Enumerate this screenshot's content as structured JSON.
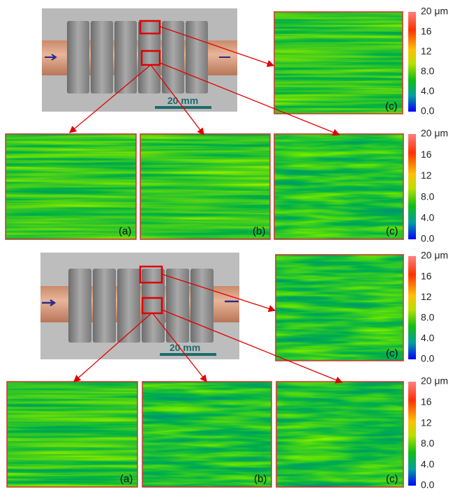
{
  "panels": [
    {
      "photo": {
        "scale_label": "20 mm"
      },
      "maps": [
        {
          "label": "(c)"
        },
        {
          "label": "(a)"
        },
        {
          "label": "(b)"
        },
        {
          "label": "(c)"
        }
      ],
      "colorbars": [
        {
          "ticks": [
            "20 μm",
            "16",
            "12",
            "8.0",
            "4.0",
            "0.0"
          ]
        },
        {
          "ticks": [
            "20 μm",
            "16",
            "12",
            "8.0",
            "4.0",
            "0.0"
          ]
        }
      ]
    },
    {
      "photo": {
        "scale_label": "20 mm"
      },
      "maps": [
        {
          "label": "(c)"
        },
        {
          "label": "(a)"
        },
        {
          "label": "(b)"
        },
        {
          "label": "(c)"
        }
      ],
      "colorbars": [
        {
          "ticks": [
            "20 μm",
            "16",
            "12",
            "8.0",
            "4.0",
            "0.0"
          ]
        },
        {
          "ticks": [
            "20 μm",
            "16",
            "12",
            "8.0",
            "4.0",
            "0.0"
          ]
        }
      ]
    }
  ]
}
